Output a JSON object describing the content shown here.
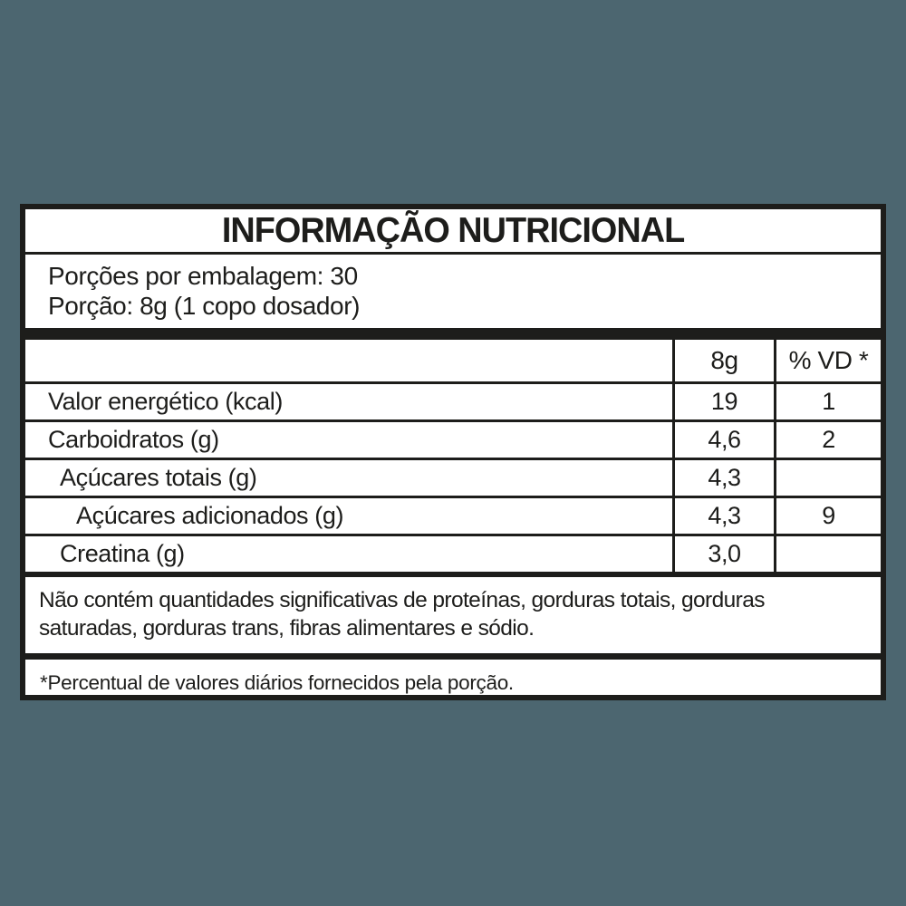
{
  "page": {
    "background_color": "#4c6670",
    "panel_color": "#ffffff",
    "ink_color": "#1d1d1b"
  },
  "label": {
    "title": "INFORMAÇÃO NUTRICIONAL",
    "servings": {
      "per_package": "Porções por embalagem: 30",
      "portion": "Porção: 8g (1 copo dosador)"
    },
    "table": {
      "columns": [
        "",
        "8g",
        "% VD *"
      ],
      "rows": [
        {
          "name": "Valor energético (kcal)",
          "amount": "19",
          "vd": "1",
          "indent": 0
        },
        {
          "name": "Carboidratos (g)",
          "amount": "4,6",
          "vd": "2",
          "indent": 0
        },
        {
          "name": "Açúcares totais (g)",
          "amount": "4,3",
          "vd": "",
          "indent": 1
        },
        {
          "name": "Açúcares adicionados (g)",
          "amount": "4,3",
          "vd": "9",
          "indent": 2
        },
        {
          "name": "Creatina (g)",
          "amount": "3,0",
          "vd": "",
          "indent": 1
        }
      ]
    },
    "note": "Não contém quantidades significativas de proteínas, gorduras totais, gorduras saturadas, gorduras trans, fibras alimentares e sódio.",
    "footnote": "*Percentual de valores diários fornecidos pela porção."
  }
}
